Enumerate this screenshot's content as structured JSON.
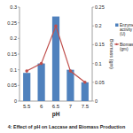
{
  "chart_data": {
    "type": "bar",
    "title": "4: Effect of pH on Laccase and Biomass Production",
    "x_label": "pH",
    "y2_label": "Biomass (gm)",
    "categories": [
      "5.5",
      "6",
      "6.5",
      "7",
      "7.5"
    ],
    "series": [
      {
        "name": "Enzyme activity (U)",
        "type": "bar",
        "color": "#4f81bd",
        "values": [
          0.09,
          0.12,
          0.27,
          0.1,
          0.06
        ]
      },
      {
        "name": "Biomass (gm)",
        "type": "line",
        "axis": "y2",
        "color": "#c0504d",
        "marker": "circle",
        "values": [
          0.08,
          0.1,
          0.2,
          0.08,
          0.05
        ]
      }
    ],
    "ylim": [
      0,
      0.3
    ],
    "yticks": [
      0,
      0.05,
      0.1,
      0.15,
      0.2,
      0.25,
      0.3
    ],
    "y2lim": [
      0,
      0.25
    ],
    "y2ticks": [
      0,
      0.05,
      0.1,
      0.15,
      0.2,
      0.25
    ],
    "legend": "right"
  }
}
